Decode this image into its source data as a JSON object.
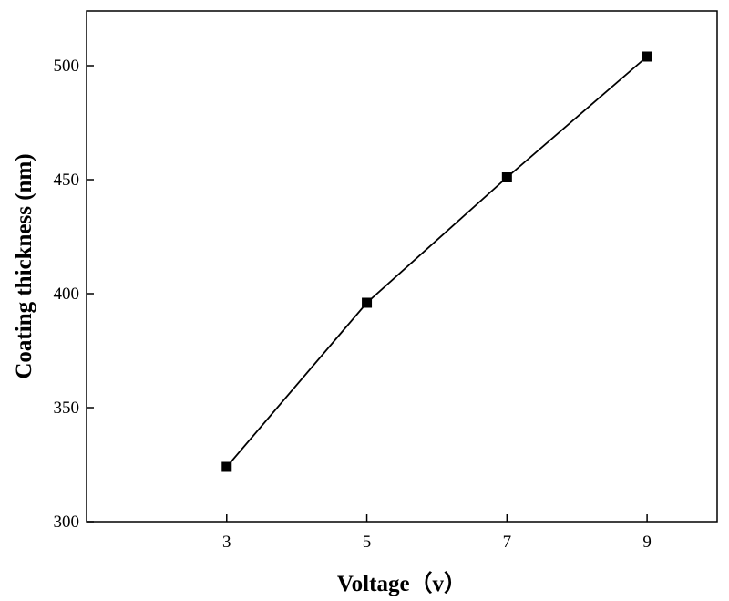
{
  "chart_data": {
    "type": "line",
    "xlabel": "Voltage（v）",
    "ylabel": "Coating thickness (nm)",
    "x": [
      3,
      5,
      7,
      9
    ],
    "x_ticks": [
      3,
      5,
      7,
      9
    ],
    "x_tick_labels": [
      "3",
      "5",
      "7",
      "9"
    ],
    "xlim": [
      1.0,
      10.0
    ],
    "y_ticks": [
      300,
      350,
      400,
      450,
      500
    ],
    "y_tick_labels": [
      "300",
      "350",
      "400",
      "450",
      "500"
    ],
    "ylim": [
      300,
      524
    ],
    "series": [
      {
        "values": [
          324,
          396,
          451,
          504
        ],
        "marker": "square",
        "color": "#000000"
      }
    ],
    "grid": false,
    "legend": "none"
  }
}
